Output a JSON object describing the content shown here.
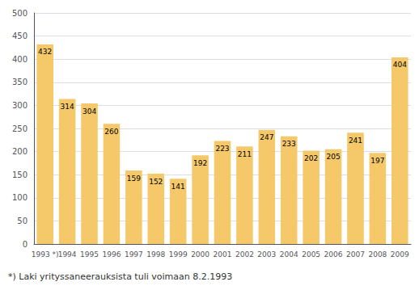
{
  "chart_data": {
    "type": "bar",
    "categories": [
      "1993 *)",
      "1994",
      "1995",
      "1996",
      "1997",
      "1998",
      "1999",
      "2000",
      "2001",
      "2002",
      "2003",
      "2004",
      "2005",
      "2006",
      "2007",
      "2008",
      "2009"
    ],
    "values": [
      432,
      314,
      304,
      260,
      159,
      152,
      141,
      192,
      223,
      211,
      247,
      233,
      202,
      205,
      241,
      197,
      404
    ],
    "color": "#F5C96A",
    "ylim": [
      0,
      500
    ],
    "yticks": [
      0,
      50,
      100,
      150,
      200,
      250,
      300,
      350,
      400,
      450,
      500
    ],
    "grid": true,
    "data_labels": true,
    "annotations": [
      "*) Laki yrityssaneerauksista tuli voimaan 8.2.1993"
    ]
  }
}
